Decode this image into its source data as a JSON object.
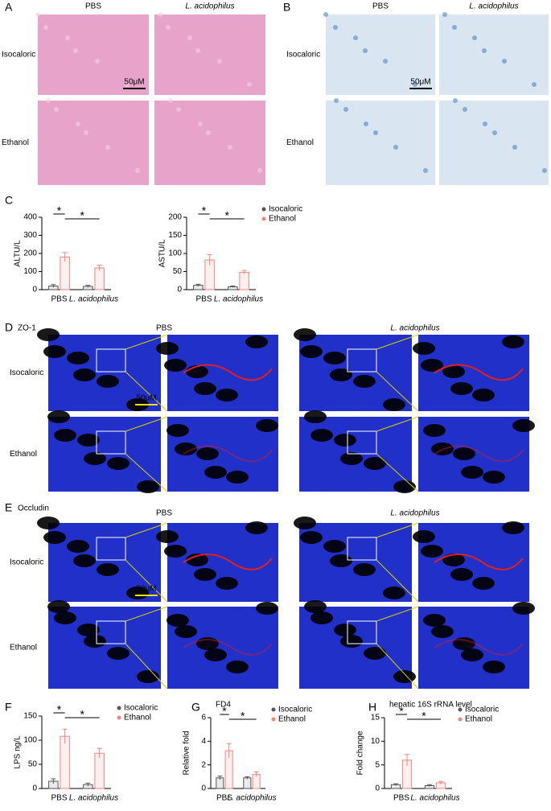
{
  "image_panels": [
    {
      "panel": "A",
      "columns": [
        "PBS",
        "L. acidophilus"
      ],
      "rows": [
        "Isocaloric",
        "Ethanol"
      ],
      "scale_bar": "50μM"
    },
    {
      "panel": "B",
      "columns": [
        "PBS",
        "L. acidophilus"
      ],
      "rows": [
        "Isocaloric",
        "Ethanol"
      ],
      "scale_bar": "50μM"
    },
    {
      "panel": "D",
      "marker": "ZO-1",
      "columns": [
        "PBS",
        "L. acidophilus"
      ],
      "rows": [
        "Isocaloric",
        "Ethanol"
      ],
      "scale_bar": "50μM"
    },
    {
      "panel": "E",
      "marker": "Occludin",
      "columns": [
        "PBS",
        "L. acidophilus"
      ],
      "rows": [
        "Isocaloric",
        "Ethanol"
      ],
      "scale_bar": "50μM"
    }
  ],
  "chart_data": [
    {
      "type": "bar",
      "panel": "C",
      "y_label": "ALTU/L",
      "categories": [
        "PBS",
        "L. acidophilus"
      ],
      "series": [
        {
          "color": "#555555",
          "values": [
            20,
            18
          ],
          "errors": [
            8,
            6
          ]
        },
        {
          "color": "#f4837d",
          "values": [
            180,
            120
          ],
          "errors": [
            25,
            15
          ]
        }
      ],
      "ylim": [
        0,
        400
      ],
      "yticks": [
        0,
        100,
        200,
        300,
        400
      ],
      "significance": [
        "*",
        "*"
      ]
    },
    {
      "type": "bar",
      "y_label": "ASTU/L",
      "categories": [
        "PBS",
        "L. acidophilus"
      ],
      "series": [
        {
          "name": "Isocaloric",
          "color": "#555555",
          "values": [
            12,
            8
          ],
          "errors": [
            3,
            2
          ]
        },
        {
          "name": "Ethanol",
          "color": "#f4837d",
          "values": [
            82,
            48
          ],
          "errors": [
            15,
            5
          ]
        }
      ],
      "ylim": [
        0,
        200
      ],
      "yticks": [
        0,
        50,
        100,
        150,
        200
      ],
      "significance": [
        "*",
        "*"
      ]
    },
    {
      "type": "bar",
      "panel": "F",
      "y_label": "LPS ng/L",
      "categories": [
        "PBS",
        "L. acidophilus"
      ],
      "series": [
        {
          "name": "Isocaloric",
          "color": "#555555",
          "values": [
            15,
            8
          ],
          "errors": [
            5,
            3
          ]
        },
        {
          "name": "Ethanol",
          "color": "#f4837d",
          "values": [
            108,
            73
          ],
          "errors": [
            15,
            10
          ]
        }
      ],
      "ylim": [
        0,
        150
      ],
      "yticks": [
        0,
        50,
        100,
        150
      ],
      "significance": [
        "*",
        "*"
      ]
    },
    {
      "type": "bar",
      "panel": "G",
      "title": "FD4",
      "y_label": "Relative fold",
      "categories": [
        "PBS",
        "L. acidophilus"
      ],
      "series": [
        {
          "name": "Isocaloric",
          "color": "#555555",
          "values": [
            0.9,
            0.9
          ],
          "errors": [
            0.15,
            0.1
          ]
        },
        {
          "name": "Ethanol",
          "color": "#f4837d",
          "values": [
            3.2,
            1.2
          ],
          "errors": [
            0.6,
            0.2
          ]
        }
      ],
      "ylim": [
        0,
        6
      ],
      "yticks": [
        0,
        2,
        4,
        6
      ],
      "significance": [
        "*",
        "*"
      ]
    },
    {
      "type": "bar",
      "panel": "H",
      "title": "hepatic 16S rRNA level",
      "y_label": "Fold change",
      "categories": [
        "PBS",
        "L. acidophilus"
      ],
      "series": [
        {
          "name": "Isocaloric",
          "color": "#555555",
          "values": [
            0.8,
            0.6
          ],
          "errors": [
            0.2,
            0.2
          ]
        },
        {
          "name": "Ethanol",
          "color": "#f4837d",
          "values": [
            6,
            1.2
          ],
          "errors": [
            1.2,
            0.3
          ]
        }
      ],
      "ylim": [
        0,
        15
      ],
      "yticks": [
        0,
        5,
        10,
        15
      ],
      "significance": [
        "*",
        "*"
      ]
    }
  ]
}
